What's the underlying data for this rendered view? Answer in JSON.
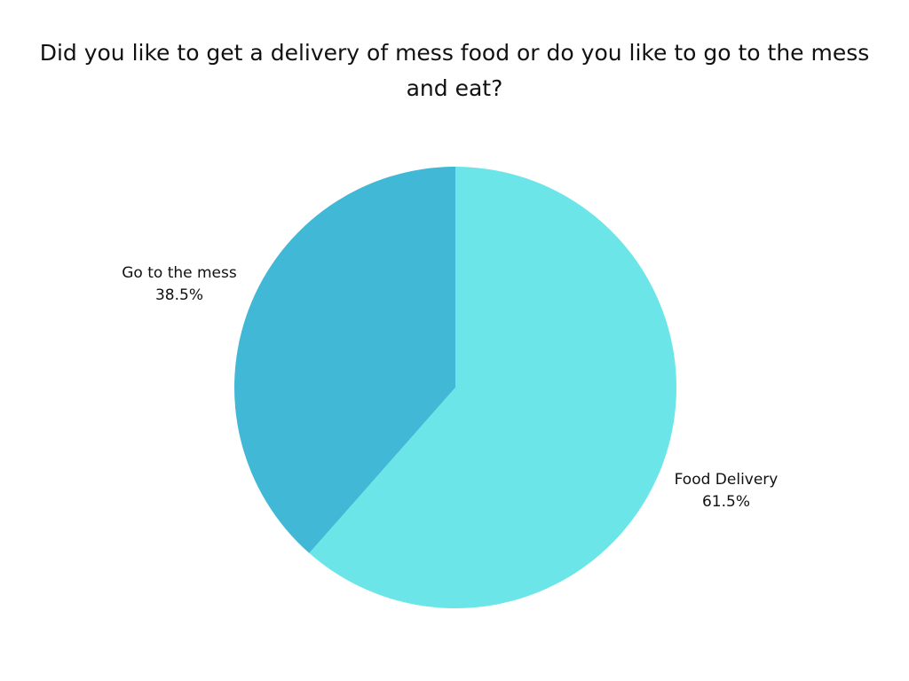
{
  "chart_data": {
    "type": "pie",
    "title": "Did you like to get a delivery of mess food or do you like to go to the mess and eat?",
    "slices": [
      {
        "label": "Food Delivery",
        "value": 61.5,
        "display": "61.5%",
        "color": "#6ce5e8"
      },
      {
        "label": "Go to the mess",
        "value": 38.5,
        "display": "38.5%",
        "color": "#41b8d5"
      }
    ],
    "legend": "none"
  }
}
